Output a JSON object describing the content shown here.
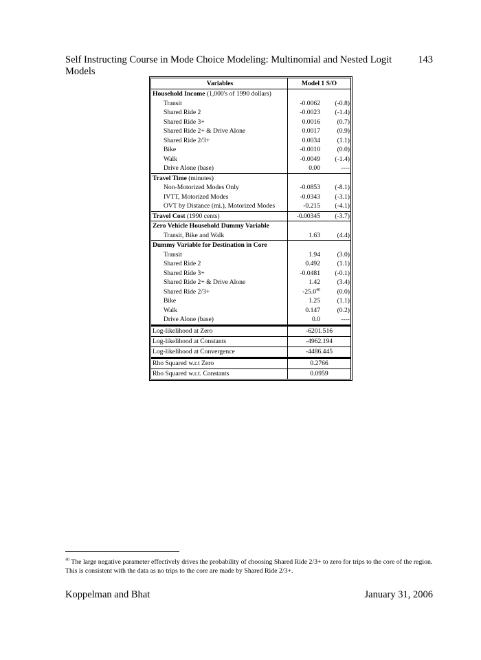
{
  "header": {
    "title": "Self Instructing Course in Mode Choice Modeling: Multinomial and Nested Logit Models",
    "page_number": "143"
  },
  "table": {
    "col_variables": "Variables",
    "col_model": "Model 1 S/O",
    "groups": [
      {
        "title_bold": "Household Income",
        "title_rest": " (1,000's of 1990 dollars)",
        "items": [
          [
            "Transit",
            "-0.0062",
            "(-0.8)"
          ],
          [
            "Shared Ride 2",
            "-0.0023",
            "(-1.4)"
          ],
          [
            "Shared Ride 3+",
            "0.0016",
            "(0.7)"
          ],
          [
            "Shared Ride 2+ & Drive Alone",
            "0.0017",
            "(0.9)"
          ],
          [
            "Shared Ride 2/3+",
            "0.0034",
            "(1.1)"
          ],
          [
            "Bike",
            "-0.0010",
            "(0.0)"
          ],
          [
            "Walk",
            "-0.0049",
            "(-1.4)"
          ],
          [
            "Drive Alone (base)",
            "0.00",
            "----"
          ]
        ]
      },
      {
        "title_bold": "Travel Time",
        "title_rest": " (minutes)",
        "items": [
          [
            "Non-Motorized Modes Only",
            "-0.0853",
            "(-8.1)"
          ],
          [
            "IVTT, Motorized Modes",
            "-0.0343",
            "(-3.1)"
          ],
          [
            "OVT by Distance (mi.), Motorized Modes",
            "-0.215",
            "(-4.1)"
          ]
        ]
      },
      {
        "title_bold": "Travel Cost",
        "title_rest": " (1990 cents)",
        "value": "-0.00345",
        "t": "(-3.7)",
        "items": []
      },
      {
        "title_bold": "Zero Vehicle Household Dummy Variable",
        "title_rest": "",
        "items": [
          [
            "Transit, Bike and Walk",
            "1.63",
            "(4.4)"
          ]
        ]
      },
      {
        "title_bold": "Dummy Variable for Destination in Core",
        "title_rest": "",
        "items": [
          [
            "Transit",
            "1.94",
            "(3.0)"
          ],
          [
            "Shared Ride 2",
            "0.492",
            "(1.1)"
          ],
          [
            "Shared Ride 3+",
            "-0.0481",
            "(-0.1)"
          ],
          [
            "Shared Ride 2+ & Drive Alone",
            "1.42",
            "(3.4)"
          ],
          [
            "Shared Ride 2/3+",
            "-25.0",
            "(0.0)",
            "40"
          ],
          [
            "Bike",
            "1.25",
            "(1.1)"
          ],
          [
            "Walk",
            "0.147",
            "(0.2)"
          ],
          [
            "Drive Alone (base)",
            "0.0",
            "----"
          ]
        ]
      }
    ],
    "loglik": [
      [
        "Log-likelihood at Zero",
        "-6201.516"
      ],
      [
        "Log-likelihood at Constants",
        "-4962.194"
      ],
      [
        "Log-likelihood at Convergence",
        "-4486.445"
      ]
    ],
    "rho": [
      [
        "Rho Squared w.r.t Zero",
        "0.2766"
      ],
      [
        "Rho Squared w.r.t. Constants",
        "0.0959"
      ]
    ]
  },
  "footnote": {
    "number": "40",
    "text": " The large negative parameter effectively drives the probability of choosing Shared Ride 2/3+ to zero for trips to the core of the region.  This is consistent with the data as no trips to the core are made by Shared Ride 2/3+."
  },
  "footer": {
    "authors": "Koppelman and Bhat",
    "date": "January 31, 2006"
  }
}
